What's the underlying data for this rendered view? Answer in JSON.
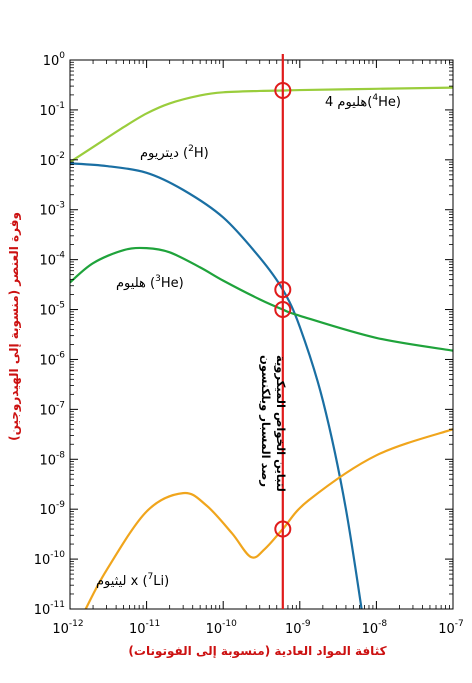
{
  "chart_data": {
    "type": "line",
    "title": "",
    "xlabel": "كثافة المواد العادية (منسوبة إلى الفوتونات)",
    "ylabel": "وفرة العنصر (منسوبة إلى الهيدروجين)",
    "x_scale": "log",
    "y_scale": "log",
    "xlim": [
      1e-12,
      1e-07
    ],
    "ylim": [
      1e-11,
      1
    ],
    "x_ticks": [
      {
        "value": 1e-12,
        "base": "10",
        "exp": "-12"
      },
      {
        "value": 1e-11,
        "base": "10",
        "exp": "-11"
      },
      {
        "value": 1e-10,
        "base": "10",
        "exp": "-10"
      },
      {
        "value": 1e-09,
        "base": "10",
        "exp": "-9"
      },
      {
        "value": 1e-08,
        "base": "10",
        "exp": "-8"
      },
      {
        "value": 1e-07,
        "base": "10",
        "exp": "-7"
      }
    ],
    "y_ticks": [
      {
        "value": 1,
        "base": "10",
        "exp": "0"
      },
      {
        "value": 0.1,
        "base": "10",
        "exp": "-1"
      },
      {
        "value": 0.01,
        "base": "10",
        "exp": "-2"
      },
      {
        "value": 0.001,
        "base": "10",
        "exp": "-3"
      },
      {
        "value": 0.0001,
        "base": "10",
        "exp": "-4"
      },
      {
        "value": 1e-05,
        "base": "10",
        "exp": "-5"
      },
      {
        "value": 1e-06,
        "base": "10",
        "exp": "-6"
      },
      {
        "value": 1e-07,
        "base": "10",
        "exp": "-7"
      },
      {
        "value": 1e-08,
        "base": "10",
        "exp": "-8"
      },
      {
        "value": 1e-09,
        "base": "10",
        "exp": "-9"
      },
      {
        "value": 1e-10,
        "base": "10",
        "exp": "-10"
      },
      {
        "value": 1e-11,
        "base": "10",
        "exp": "-11"
      }
    ],
    "series": [
      {
        "name": "4He",
        "label": {
          "prefix": "4(",
          "sup": "4",
          "main": "He)",
          "arabic": "هليوم"
        },
        "color": "#9acd3c",
        "points": [
          [
            1e-12,
            0.009
          ],
          [
            2e-12,
            0.018
          ],
          [
            5e-12,
            0.045
          ],
          [
            1e-11,
            0.085
          ],
          [
            2e-11,
            0.135
          ],
          [
            5e-11,
            0.195
          ],
          [
            1e-10,
            0.225
          ],
          [
            3e-10,
            0.24
          ],
          [
            6e-10,
            0.245
          ],
          [
            1e-09,
            0.25
          ],
          [
            1e-08,
            0.265
          ],
          [
            1e-07,
            0.28
          ]
        ]
      },
      {
        "name": "2H",
        "label": {
          "sup": "2",
          "main": "H)",
          "open": "(",
          "arabic": "ديتريوم"
        },
        "color": "#1a6fa3",
        "points": [
          [
            1e-12,
            0.0085
          ],
          [
            3e-12,
            0.0075
          ],
          [
            1e-11,
            0.0055
          ],
          [
            3e-11,
            0.0025
          ],
          [
            1e-10,
            0.0007
          ],
          [
            3e-10,
            0.00011
          ],
          [
            6e-10,
            2.5e-05
          ],
          [
            1e-09,
            4.5e-06
          ],
          [
            2e-09,
            1.5e-07
          ],
          [
            4e-09,
            1e-09
          ],
          [
            8e-09,
            1e-12
          ]
        ]
      },
      {
        "name": "3He",
        "label": {
          "sup": "3",
          "main": "He)",
          "open": "(",
          "arabic": "هليوم"
        },
        "color": "#1fa33b",
        "points": [
          [
            1e-12,
            3.5e-05
          ],
          [
            2e-12,
            8.5e-05
          ],
          [
            5e-12,
            0.000155
          ],
          [
            1e-11,
            0.00017
          ],
          [
            2e-11,
            0.00014
          ],
          [
            5e-11,
            7e-05
          ],
          [
            1e-10,
            3.8e-05
          ],
          [
            3e-10,
            1.6e-05
          ],
          [
            6e-10,
            1e-05
          ],
          [
            1e-09,
            7.5e-06
          ],
          [
            1e-08,
            2.7e-06
          ],
          [
            1e-07,
            1.5e-06
          ]
        ]
      },
      {
        "name": "7Li",
        "label": {
          "sup": "7",
          "main": "Li)",
          "open": "(",
          "arabic": "ليثيوم",
          "times": "x"
        },
        "color": "#f0a51c",
        "points": [
          [
            1.6e-12,
            1e-11
          ],
          [
            3e-12,
            6e-11
          ],
          [
            1e-11,
            9e-10
          ],
          [
            3e-11,
            2.1e-09
          ],
          [
            6e-11,
            1.2e-09
          ],
          [
            1.3e-10,
            3.3e-10
          ],
          [
            2.3e-10,
            1.1e-10
          ],
          [
            3.5e-10,
            1.6e-10
          ],
          [
            6e-10,
            4e-10
          ],
          [
            1.3e-09,
            1.5e-09
          ],
          [
            1e-08,
            1.2e-08
          ],
          [
            1e-07,
            4e-08
          ]
        ]
      }
    ],
    "marker_line": {
      "x": 6e-10,
      "color": "#e01b1b",
      "label_line1": "رصد المسبار ويلكنسون",
      "label_line2": "لتباين الخواص الميكروية"
    },
    "markers": [
      {
        "series": "4He",
        "x": 6e-10,
        "y": 0.245
      },
      {
        "series": "2H",
        "x": 6e-10,
        "y": 2.5e-05
      },
      {
        "series": "3He",
        "x": 6e-10,
        "y": 1e-05
      },
      {
        "series": "7Li",
        "x": 6e-10,
        "y": 4e-10
      }
    ],
    "grid": false,
    "legend": "none"
  }
}
